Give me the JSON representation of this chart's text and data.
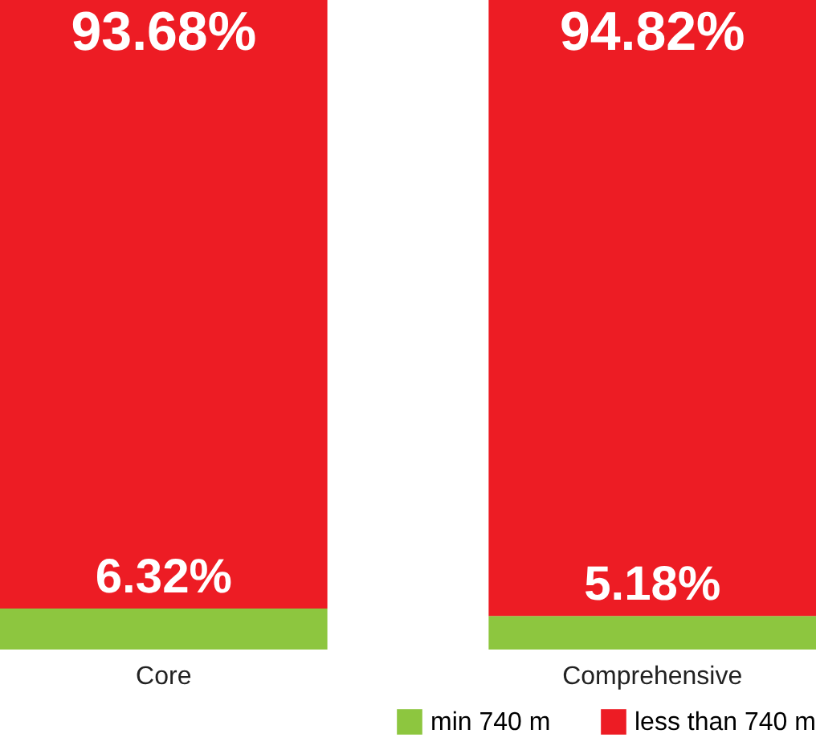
{
  "chart_data": {
    "type": "bar",
    "stacked": true,
    "categories": [
      "Core",
      "Comprehensive"
    ],
    "series": [
      {
        "name": "min 740 m",
        "color": "#8dc63f",
        "values": [
          6.32,
          5.18
        ],
        "value_labels": [
          "6.32%",
          "5.18%"
        ]
      },
      {
        "name": "less than 740 m",
        "color": "#ed1c24",
        "values": [
          93.68,
          94.82
        ],
        "value_labels": [
          "93.68%",
          "94.82%"
        ]
      }
    ],
    "legend": "bottom right"
  }
}
